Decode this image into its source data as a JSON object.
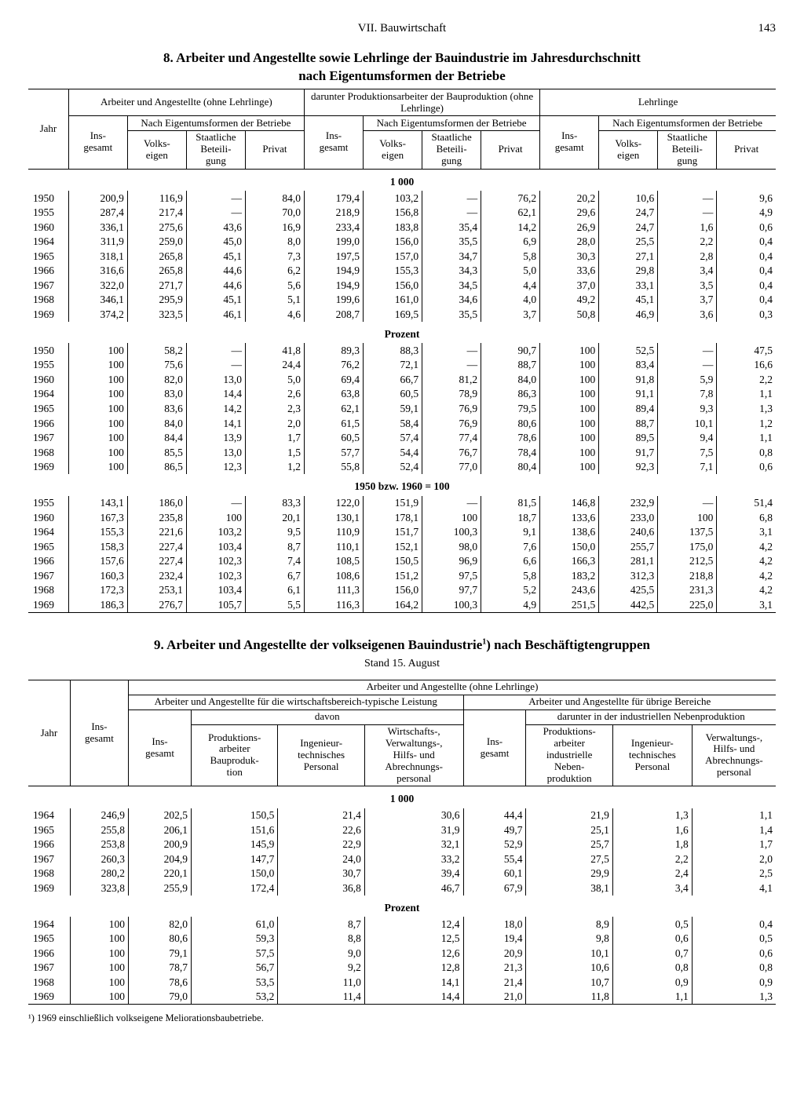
{
  "page": {
    "section": "VII. Bauwirtschaft",
    "number": "143"
  },
  "table8": {
    "number": "8.",
    "title_l1": "Arbeiter und Angestellte sowie Lehrlinge der Bauindustrie im Jahresdurchschnitt",
    "title_l2": "nach Eigentumsformen der Betriebe",
    "colgroups": {
      "group_a": "Arbeiter und Angestellte (ohne Lehrlinge)",
      "group_b": "darunter Produktionsarbeiter der Bauproduktion (ohne Lehrlinge)",
      "group_c": "Lehrlinge",
      "sub_eig": "Nach Eigentumsformen der Betriebe"
    },
    "cols": {
      "jahr": "Jahr",
      "ins": "Ins-\ngesamt",
      "volks": "Volks-\neigen",
      "staat": "Staatliche Beteili-\ngung",
      "privat": "Privat"
    },
    "sections": {
      "s1": "1 000",
      "s2": "Prozent",
      "s3": "1950 bzw. 1960 = 100"
    },
    "rows_s1": [
      [
        "1950",
        "200,9",
        "116,9",
        "—",
        "84,0",
        "179,4",
        "103,2",
        "—",
        "76,2",
        "20,2",
        "10,6",
        "—",
        "9,6"
      ],
      [
        "1955",
        "287,4",
        "217,4",
        "—",
        "70,0",
        "218,9",
        "156,8",
        "—",
        "62,1",
        "29,6",
        "24,7",
        "—",
        "4,9"
      ],
      [
        "1960",
        "336,1",
        "275,6",
        "43,6",
        "16,9",
        "233,4",
        "183,8",
        "35,4",
        "14,2",
        "26,9",
        "24,7",
        "1,6",
        "0,6"
      ],
      [
        "1964",
        "311,9",
        "259,0",
        "45,0",
        "8,0",
        "199,0",
        "156,0",
        "35,5",
        "6,9",
        "28,0",
        "25,5",
        "2,2",
        "0,4"
      ],
      [
        "1965",
        "318,1",
        "265,8",
        "45,1",
        "7,3",
        "197,5",
        "157,0",
        "34,7",
        "5,8",
        "30,3",
        "27,1",
        "2,8",
        "0,4"
      ],
      [
        "1966",
        "316,6",
        "265,8",
        "44,6",
        "6,2",
        "194,9",
        "155,3",
        "34,3",
        "5,0",
        "33,6",
        "29,8",
        "3,4",
        "0,4"
      ],
      [
        "1967",
        "322,0",
        "271,7",
        "44,6",
        "5,6",
        "194,9",
        "156,0",
        "34,5",
        "4,4",
        "37,0",
        "33,1",
        "3,5",
        "0,4"
      ],
      [
        "1968",
        "346,1",
        "295,9",
        "45,1",
        "5,1",
        "199,6",
        "161,0",
        "34,6",
        "4,0",
        "49,2",
        "45,1",
        "3,7",
        "0,4"
      ],
      [
        "1969",
        "374,2",
        "323,5",
        "46,1",
        "4,6",
        "208,7",
        "169,5",
        "35,5",
        "3,7",
        "50,8",
        "46,9",
        "3,6",
        "0,3"
      ]
    ],
    "rows_s2": [
      [
        "1950",
        "100",
        "58,2",
        "—",
        "41,8",
        "89,3",
        "88,3",
        "—",
        "90,7",
        "100",
        "52,5",
        "—",
        "47,5"
      ],
      [
        "1955",
        "100",
        "75,6",
        "—",
        "24,4",
        "76,2",
        "72,1",
        "—",
        "88,7",
        "100",
        "83,4",
        "—",
        "16,6"
      ],
      [
        "1960",
        "100",
        "82,0",
        "13,0",
        "5,0",
        "69,4",
        "66,7",
        "81,2",
        "84,0",
        "100",
        "91,8",
        "5,9",
        "2,2"
      ],
      [
        "1964",
        "100",
        "83,0",
        "14,4",
        "2,6",
        "63,8",
        "60,5",
        "78,9",
        "86,3",
        "100",
        "91,1",
        "7,8",
        "1,1"
      ],
      [
        "1965",
        "100",
        "83,6",
        "14,2",
        "2,3",
        "62,1",
        "59,1",
        "76,9",
        "79,5",
        "100",
        "89,4",
        "9,3",
        "1,3"
      ],
      [
        "1966",
        "100",
        "84,0",
        "14,1",
        "2,0",
        "61,5",
        "58,4",
        "76,9",
        "80,6",
        "100",
        "88,7",
        "10,1",
        "1,2"
      ],
      [
        "1967",
        "100",
        "84,4",
        "13,9",
        "1,7",
        "60,5",
        "57,4",
        "77,4",
        "78,6",
        "100",
        "89,5",
        "9,4",
        "1,1"
      ],
      [
        "1968",
        "100",
        "85,5",
        "13,0",
        "1,5",
        "57,7",
        "54,4",
        "76,7",
        "78,4",
        "100",
        "91,7",
        "7,5",
        "0,8"
      ],
      [
        "1969",
        "100",
        "86,5",
        "12,3",
        "1,2",
        "55,8",
        "52,4",
        "77,0",
        "80,4",
        "100",
        "92,3",
        "7,1",
        "0,6"
      ]
    ],
    "rows_s3": [
      [
        "1955",
        "143,1",
        "186,0",
        "—",
        "83,3",
        "122,0",
        "151,9",
        "—",
        "81,5",
        "146,8",
        "232,9",
        "—",
        "51,4"
      ],
      [
        "1960",
        "167,3",
        "235,8",
        "100",
        "20,1",
        "130,1",
        "178,1",
        "100",
        "18,7",
        "133,6",
        "233,0",
        "100",
        "6,8"
      ],
      [
        "1964",
        "155,3",
        "221,6",
        "103,2",
        "9,5",
        "110,9",
        "151,7",
        "100,3",
        "9,1",
        "138,6",
        "240,6",
        "137,5",
        "3,1"
      ],
      [
        "1965",
        "158,3",
        "227,4",
        "103,4",
        "8,7",
        "110,1",
        "152,1",
        "98,0",
        "7,6",
        "150,0",
        "255,7",
        "175,0",
        "4,2"
      ],
      [
        "1966",
        "157,6",
        "227,4",
        "102,3",
        "7,4",
        "108,5",
        "150,5",
        "96,9",
        "6,6",
        "166,3",
        "281,1",
        "212,5",
        "4,2"
      ],
      [
        "1967",
        "160,3",
        "232,4",
        "102,3",
        "6,7",
        "108,6",
        "151,2",
        "97,5",
        "5,8",
        "183,2",
        "312,3",
        "218,8",
        "4,2"
      ],
      [
        "1968",
        "172,3",
        "253,1",
        "103,4",
        "6,1",
        "111,3",
        "156,0",
        "97,7",
        "5,2",
        "243,6",
        "425,5",
        "231,3",
        "4,2"
      ],
      [
        "1969",
        "186,3",
        "276,7",
        "105,7",
        "5,5",
        "116,3",
        "164,2",
        "100,3",
        "4,9",
        "251,5",
        "442,5",
        "225,0",
        "3,1"
      ]
    ]
  },
  "table9": {
    "number": "9.",
    "title": "Arbeiter und Angestellte der volkseigenen Bauindustrie¹) nach Beschäftigtengruppen",
    "subtitle": "Stand 15. August",
    "head": {
      "top": "Arbeiter und Angestellte (ohne Lehrlinge)",
      "left_group": "Arbeiter und Angestellte für die wirtschaftsbereich-typische Leistung",
      "right_group": "Arbeiter und Angestellte für übrige Bereiche",
      "davon": "davon",
      "darunter": "darunter in der industriellen Nebenproduktion"
    },
    "cols": {
      "jahr": "Jahr",
      "ins": "Ins-\ngesamt",
      "c1": "Produktions-\narbeiter\nBauproduk-\ntion",
      "c2": "Ingenieur-\ntechnisches\nPersonal",
      "c3": "Wirtschafts-,\nVerwaltungs-,\nHilfs- und\nAbrechnungs-\npersonal",
      "c4": "Produktions-\narbeiter\nindustrielle\nNeben-\nproduktion",
      "c5": "Ingenieur-\ntechnisches\nPersonal",
      "c6": "Verwaltungs-,\nHilfs- und\nAbrechnungs-\npersonal"
    },
    "sections": {
      "s1": "1 000",
      "s2": "Prozent"
    },
    "rows_s1": [
      [
        "1964",
        "246,9",
        "202,5",
        "150,5",
        "21,4",
        "30,6",
        "44,4",
        "21,9",
        "1,3",
        "1,1"
      ],
      [
        "1965",
        "255,8",
        "206,1",
        "151,6",
        "22,6",
        "31,9",
        "49,7",
        "25,1",
        "1,6",
        "1,4"
      ],
      [
        "1966",
        "253,8",
        "200,9",
        "145,9",
        "22,9",
        "32,1",
        "52,9",
        "25,7",
        "1,8",
        "1,7"
      ],
      [
        "1967",
        "260,3",
        "204,9",
        "147,7",
        "24,0",
        "33,2",
        "55,4",
        "27,5",
        "2,2",
        "2,0"
      ],
      [
        "1968",
        "280,2",
        "220,1",
        "150,0",
        "30,7",
        "39,4",
        "60,1",
        "29,9",
        "2,4",
        "2,5"
      ],
      [
        "1969",
        "323,8",
        "255,9",
        "172,4",
        "36,8",
        "46,7",
        "67,9",
        "38,1",
        "3,4",
        "4,1"
      ]
    ],
    "rows_s2": [
      [
        "1964",
        "100",
        "82,0",
        "61,0",
        "8,7",
        "12,4",
        "18,0",
        "8,9",
        "0,5",
        "0,4"
      ],
      [
        "1965",
        "100",
        "80,6",
        "59,3",
        "8,8",
        "12,5",
        "19,4",
        "9,8",
        "0,6",
        "0,5"
      ],
      [
        "1966",
        "100",
        "79,1",
        "57,5",
        "9,0",
        "12,6",
        "20,9",
        "10,1",
        "0,7",
        "0,6"
      ],
      [
        "1967",
        "100",
        "78,7",
        "56,7",
        "9,2",
        "12,8",
        "21,3",
        "10,6",
        "0,8",
        "0,8"
      ],
      [
        "1968",
        "100",
        "78,6",
        "53,5",
        "11,0",
        "14,1",
        "21,4",
        "10,7",
        "0,9",
        "0,9"
      ],
      [
        "1969",
        "100",
        "79,0",
        "53,2",
        "11,4",
        "14,4",
        "21,0",
        "11,8",
        "1,1",
        "1,3"
      ]
    ],
    "footnote": "¹) 1969 einschließlich volkseigene Meliorationsbaubetriebe."
  }
}
